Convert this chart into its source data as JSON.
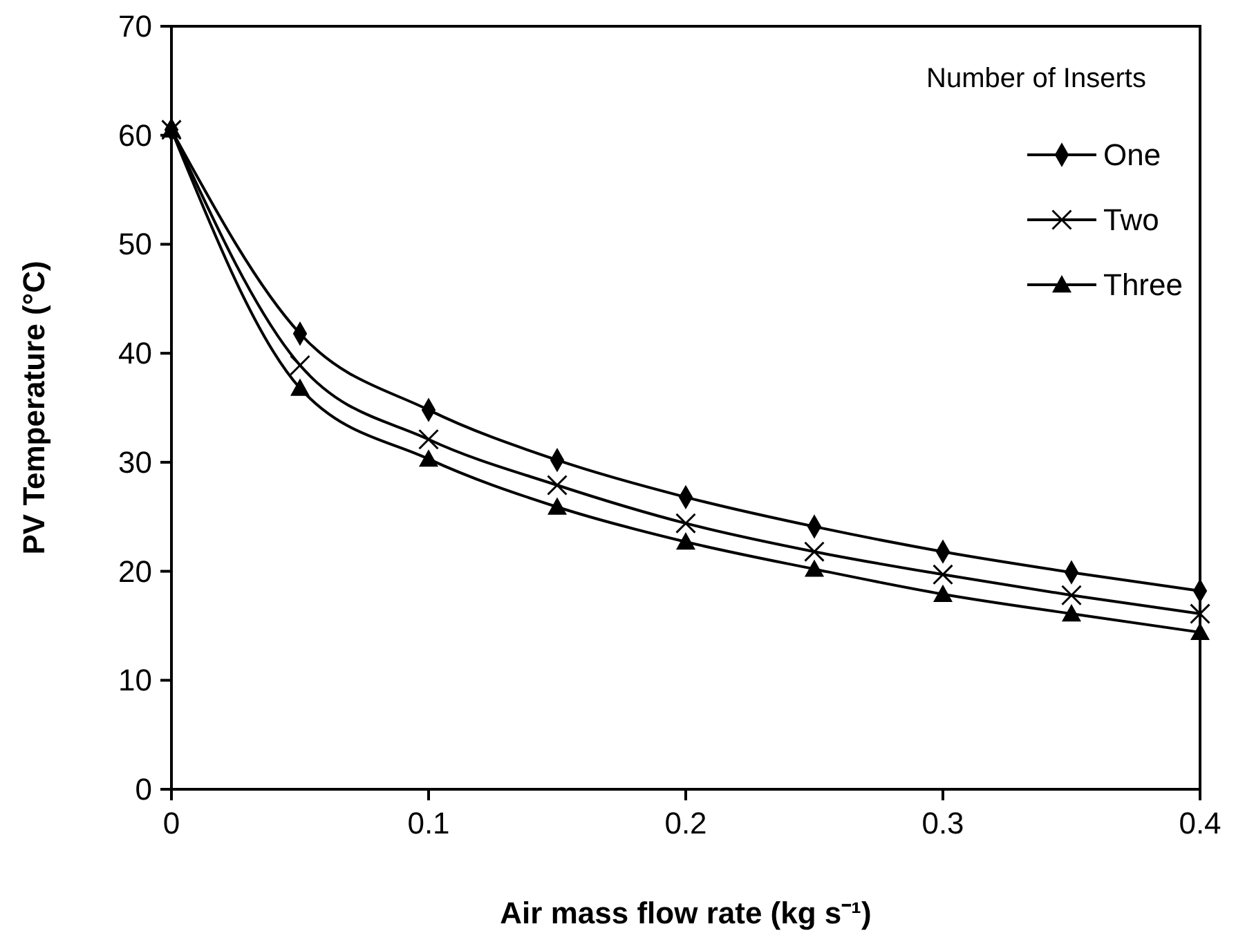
{
  "chart_data": {
    "type": "line",
    "xlabel": "Air mass flow rate (kg s⁻¹)",
    "ylabel": "PV Temperature (°C)",
    "legend_title": "Number of Inserts",
    "legend": "top right",
    "grid": false,
    "line_style": "solid",
    "x": [
      0,
      0.05,
      0.1,
      0.15,
      0.2,
      0.25,
      0.3,
      0.35,
      0.4
    ],
    "xlim": [
      0,
      0.4
    ],
    "xticks": [
      0,
      0.1,
      0.2,
      0.3,
      0.4
    ],
    "ylim": [
      0,
      70
    ],
    "yticks": [
      0,
      10,
      20,
      30,
      40,
      50,
      60,
      70
    ],
    "series": [
      {
        "name": "One",
        "color": "#000000",
        "marker": "diamond",
        "values": [
          60.5,
          41.8,
          34.8,
          30.2,
          26.8,
          24.1,
          21.8,
          19.9,
          18.2
        ]
      },
      {
        "name": "Two",
        "color": "#000000",
        "marker": "cross",
        "values": [
          60.5,
          38.9,
          32.1,
          27.9,
          24.4,
          21.8,
          19.7,
          17.8,
          16.1
        ]
      },
      {
        "name": "Three",
        "color": "#000000",
        "marker": "triangle",
        "values": [
          60.5,
          36.8,
          30.3,
          25.9,
          22.7,
          20.2,
          17.9,
          16.1,
          14.4
        ]
      }
    ]
  }
}
